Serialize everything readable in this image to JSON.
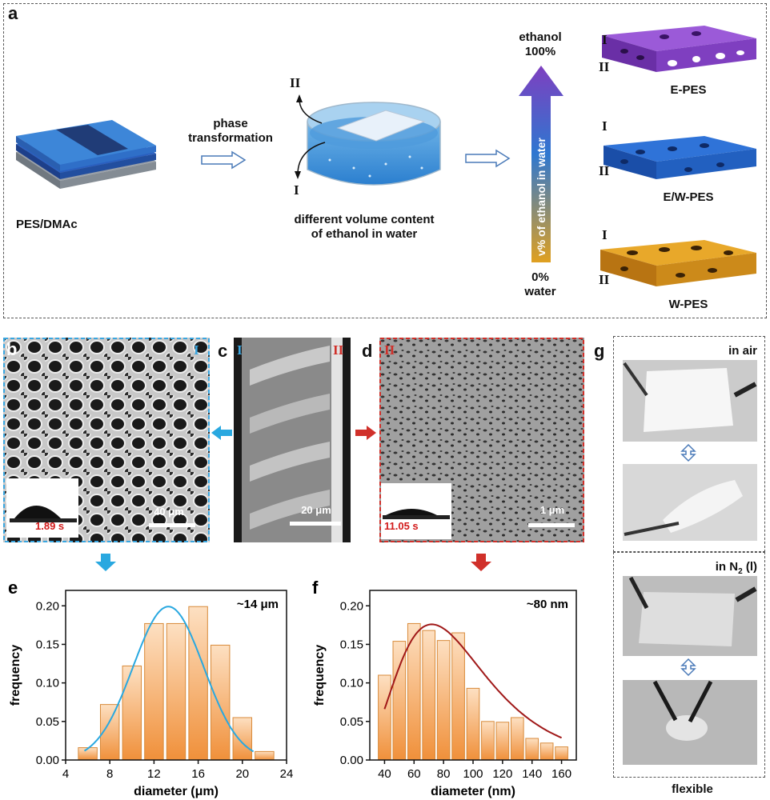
{
  "panel_a": {
    "letter": "a",
    "start_label": "PES/DMAc",
    "step_label_1": "phase",
    "step_label_2": "transformation",
    "bath_label_1": "different volume content",
    "bath_label_2": "of ethanol in water",
    "roman_I": "I",
    "roman_II": "II",
    "arrow_top_1": "ethanol",
    "arrow_top_2": "100%",
    "arrow_bottom_1": "0%",
    "arrow_bottom_2": "water",
    "arrow_text": "v% of ethanol in water",
    "membranes": [
      {
        "name": "E-PES",
        "color": "#7a3fc0"
      },
      {
        "name": "E/W-PES",
        "color": "#1f5fc8"
      },
      {
        "name": "W-PES",
        "color": "#d9941c"
      }
    ]
  },
  "panel_b": {
    "letter": "b",
    "corner": "I",
    "scale": "40 μm",
    "time": "1.89 s",
    "frame_color": "#3aa6e0"
  },
  "panel_c": {
    "letter": "c",
    "corner_left": "I",
    "corner_right": "II",
    "scale": "20 μm"
  },
  "panel_d": {
    "letter": "d",
    "corner": "II",
    "scale": "1 μm",
    "time": "11.05 s",
    "frame_color": "#d0302a"
  },
  "panel_g": {
    "letter": "g",
    "label_air": "in air",
    "label_n2_pre": "in N",
    "label_n2_sub": "2",
    "label_n2_post": " (l)",
    "caption": "flexible"
  },
  "chart_data": [
    {
      "panel": "e",
      "type": "bar",
      "x": [
        6,
        8,
        10,
        12,
        14,
        16,
        18,
        20,
        22
      ],
      "values": [
        0.016,
        0.072,
        0.122,
        0.177,
        0.177,
        0.199,
        0.149,
        0.055,
        0.011
      ],
      "fit_curve": "gaussian",
      "fit_peak_x": 13.3,
      "fit_peak_y": 0.199,
      "annotation": "~14 μm",
      "xlabel": "diameter (μm)",
      "ylabel": "frequency",
      "xlim": [
        4,
        24
      ],
      "ylim": [
        0,
        0.22
      ],
      "xticks": [
        "4",
        "8",
        "12",
        "16",
        "20",
        "24"
      ],
      "yticks": [
        "0.00",
        "0.05",
        "0.10",
        "0.15",
        "0.20"
      ],
      "curve_color": "#29a8e0"
    },
    {
      "panel": "f",
      "type": "bar",
      "x": [
        40,
        50,
        60,
        70,
        80,
        90,
        100,
        110,
        120,
        130,
        140,
        150,
        160
      ],
      "values": [
        0.11,
        0.154,
        0.177,
        0.168,
        0.155,
        0.165,
        0.093,
        0.05,
        0.049,
        0.055,
        0.028,
        0.022,
        0.017
      ],
      "fit_curve": "lognormal",
      "fit_peak_x": 72,
      "fit_peak_y": 0.176,
      "annotation": "~80 nm",
      "xlabel": "diameter (nm)",
      "ylabel": "frequency",
      "xlim": [
        30,
        170
      ],
      "ylim": [
        0,
        0.22
      ],
      "xticks": [
        "40",
        "60",
        "80",
        "100",
        "120",
        "140",
        "160"
      ],
      "yticks": [
        "0.00",
        "0.05",
        "0.10",
        "0.15",
        "0.20"
      ],
      "curve_color": "#a01818"
    }
  ]
}
